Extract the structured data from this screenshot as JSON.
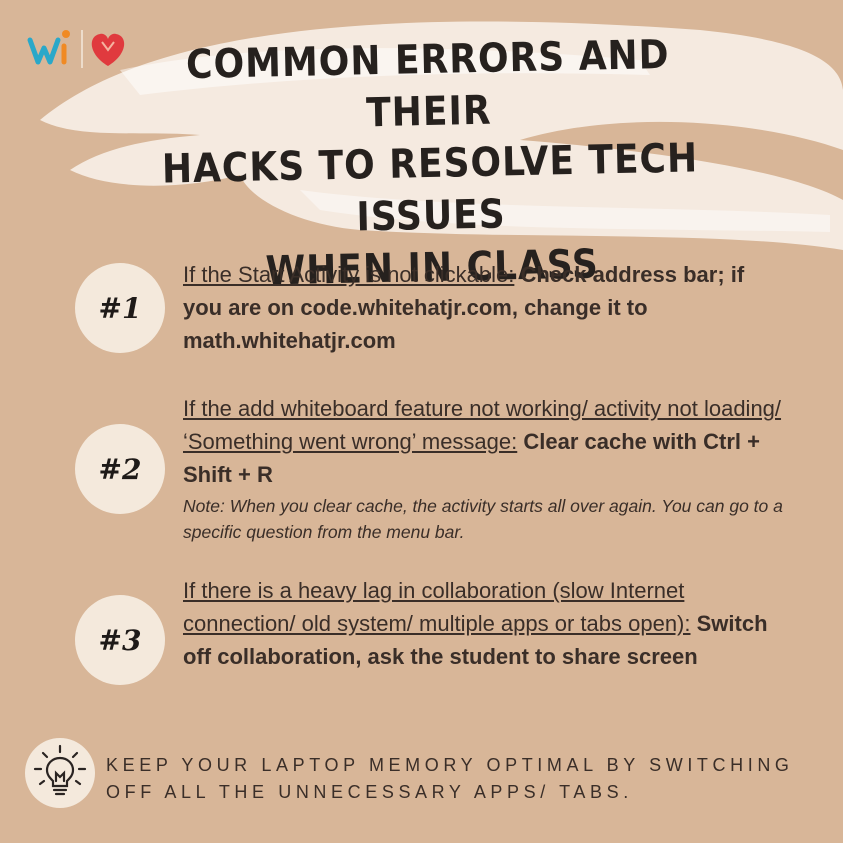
{
  "title_lines": [
    "Common Errors and Their",
    "Hacks to Resolve Tech Issues",
    "When in Class"
  ],
  "items": [
    {
      "badge": "#1",
      "condition": "If the Start Activity is not clickable:",
      "fix": " Check address bar; if you are on code.whitehatjr.com, change it to math.whitehatjr.com"
    },
    {
      "badge": "#2",
      "condition": "If the add whiteboard feature not working/ activity not loading/ ‘Something went wrong’ message:",
      "fix": " Clear cache with Ctrl + Shift + R",
      "note": "Note: When you clear cache, the activity starts all over again. You can go to a specific question from the menu bar."
    },
    {
      "badge": "#3",
      "condition": "If there is a heavy lag in collaboration (slow Internet connection/ old system/ multiple apps or tabs open):",
      "fix": " Switch off collaboration, ask the student to share screen"
    }
  ],
  "tip": "Keep your laptop memory optimal by switching off all the unnecessary apps/ tabs.",
  "colors": {
    "background": "#d8b698",
    "badge": "#f4e9dc",
    "brush": "#f7efe6",
    "text": "#3a2e28"
  },
  "icons": [
    "whitehatjr-logo",
    "heart-logo",
    "lightbulb-icon"
  ]
}
